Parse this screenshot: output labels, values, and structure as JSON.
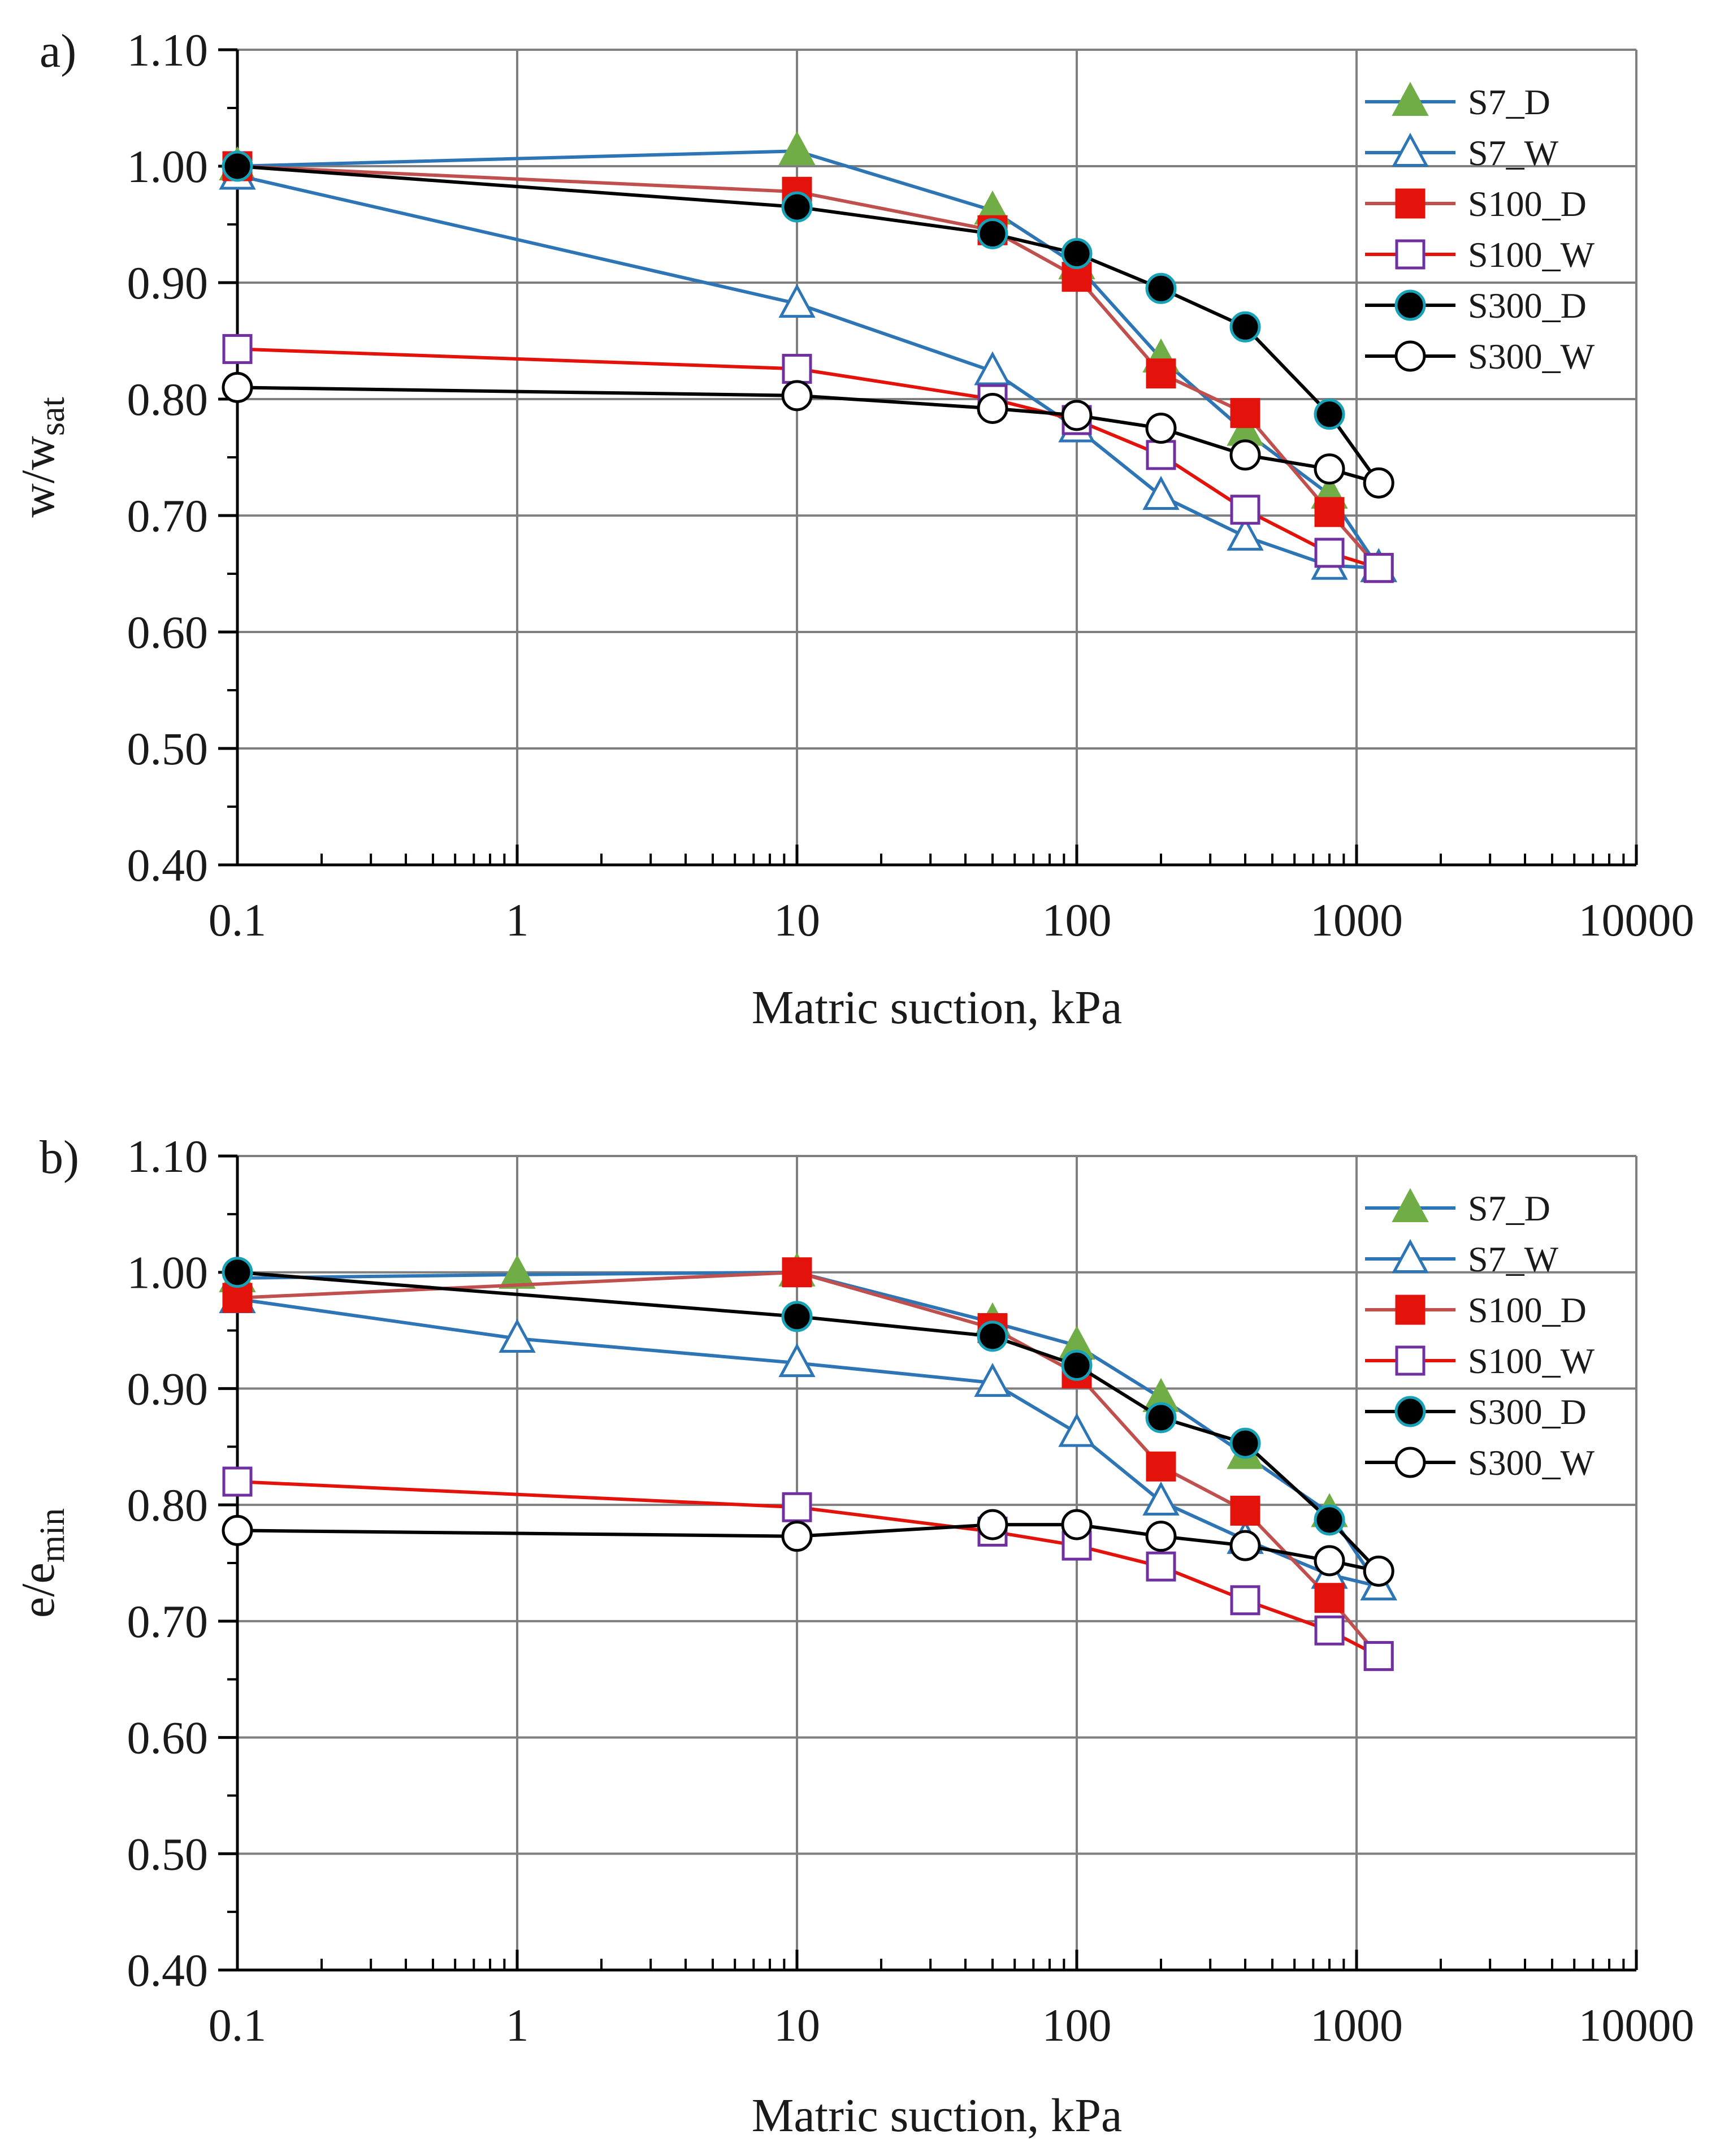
{
  "chart_data": [
    {
      "type": "line",
      "panel_label": "a)",
      "xlabel": "Matric suction, kPa",
      "ylabel_main": "w/w",
      "ylabel_sub": "sat",
      "xscale": "log",
      "xlim": [
        0.1,
        10000
      ],
      "ylim": [
        0.4,
        1.1
      ],
      "x_ticks": [
        0.1,
        1,
        10,
        100,
        1000,
        10000
      ],
      "x_tick_labels": [
        "0.1",
        "1",
        "10",
        "100",
        "1000",
        "10000"
      ],
      "y_ticks": [
        0.4,
        0.5,
        0.6,
        0.7,
        0.8,
        0.9,
        1.0,
        1.1
      ],
      "y_tick_labels": [
        "0.40",
        "0.50",
        "0.60",
        "0.70",
        "0.80",
        "0.90",
        "1.00",
        "1.10"
      ],
      "grid": true,
      "legend_position": "top-right",
      "series": [
        {
          "name": "S7_D",
          "line_color": "#2E75B6",
          "marker": "triangle",
          "marker_fill": "#70AD47",
          "marker_edge": "#70AD47",
          "x": [
            0.1,
            10,
            50,
            100,
            200,
            400,
            800,
            1200
          ],
          "y": [
            1.0,
            1.013,
            0.962,
            0.915,
            0.835,
            0.772,
            0.718,
            0.655
          ]
        },
        {
          "name": "S7_W",
          "line_color": "#2E75B6",
          "marker": "triangle",
          "marker_fill": "#ffffff",
          "marker_edge": "#2E75B6",
          "x": [
            0.1,
            10,
            50,
            100,
            200,
            400,
            800,
            1200
          ],
          "y": [
            0.992,
            0.882,
            0.824,
            0.775,
            0.717,
            0.682,
            0.657,
            0.655
          ]
        },
        {
          "name": "S100_D",
          "line_color": "#C0504D",
          "marker": "square",
          "marker_fill": "#E3120B",
          "marker_edge": "#E3120B",
          "x": [
            0.1,
            10,
            50,
            100,
            200,
            400,
            800,
            1200
          ],
          "y": [
            1.0,
            0.978,
            0.945,
            0.905,
            0.822,
            0.788,
            0.703,
            0.655
          ]
        },
        {
          "name": "S100_W",
          "line_color": "#E3120B",
          "marker": "square",
          "marker_fill": "#ffffff",
          "marker_edge": "#7030A0",
          "x": [
            0.1,
            10,
            50,
            100,
            200,
            400,
            800,
            1200
          ],
          "y": [
            0.843,
            0.826,
            0.8,
            0.782,
            0.752,
            0.705,
            0.668,
            0.655
          ]
        },
        {
          "name": "S300_D",
          "line_color": "#000000",
          "marker": "circle",
          "marker_fill": "#000000",
          "marker_edge": "#17A2B8",
          "x": [
            0.1,
            10,
            50,
            100,
            200,
            400,
            800,
            1200
          ],
          "y": [
            1.0,
            0.965,
            0.942,
            0.925,
            0.895,
            0.862,
            0.787,
            0.728
          ]
        },
        {
          "name": "S300_W",
          "line_color": "#000000",
          "marker": "circle",
          "marker_fill": "#ffffff",
          "marker_edge": "#000000",
          "x": [
            0.1,
            10,
            50,
            100,
            200,
            400,
            800,
            1200
          ],
          "y": [
            0.81,
            0.803,
            0.792,
            0.786,
            0.775,
            0.752,
            0.74,
            0.728
          ]
        }
      ]
    },
    {
      "type": "line",
      "panel_label": "b)",
      "xlabel": "Matric suction, kPa",
      "ylabel_main": "e/e",
      "ylabel_sub": "min",
      "xscale": "log",
      "xlim": [
        0.1,
        10000
      ],
      "ylim": [
        0.4,
        1.1
      ],
      "x_ticks": [
        0.1,
        1,
        10,
        100,
        1000,
        10000
      ],
      "x_tick_labels": [
        "0.1",
        "1",
        "10",
        "100",
        "1000",
        "10000"
      ],
      "y_ticks": [
        0.4,
        0.5,
        0.6,
        0.7,
        0.8,
        0.9,
        1.0,
        1.1
      ],
      "y_tick_labels": [
        "0.40",
        "0.50",
        "0.60",
        "0.70",
        "0.80",
        "0.90",
        "1.00",
        "1.10"
      ],
      "grid": true,
      "legend_position": "top-right",
      "series": [
        {
          "name": "S7_D",
          "line_color": "#2E75B6",
          "marker": "triangle",
          "marker_fill": "#70AD47",
          "marker_edge": "#70AD47",
          "x": [
            0.1,
            1,
            10,
            50,
            100,
            200,
            400,
            800,
            1200
          ],
          "y": [
            0.995,
            0.998,
            1.0,
            0.957,
            0.937,
            0.892,
            0.843,
            0.793,
            0.73
          ]
        },
        {
          "name": "S7_W",
          "line_color": "#2E75B6",
          "marker": "triangle",
          "marker_fill": "#ffffff",
          "marker_edge": "#2E75B6",
          "x": [
            0.1,
            1,
            10,
            50,
            100,
            200,
            400,
            800,
            1200
          ],
          "y": [
            0.977,
            0.943,
            0.922,
            0.905,
            0.862,
            0.803,
            0.77,
            0.74,
            0.73
          ]
        },
        {
          "name": "S100_D",
          "line_color": "#C0504D",
          "marker": "square",
          "marker_fill": "#E3120B",
          "marker_edge": "#E3120B",
          "x": [
            0.1,
            10,
            50,
            100,
            200,
            400,
            800,
            1200
          ],
          "y": [
            0.978,
            1.0,
            0.952,
            0.913,
            0.833,
            0.795,
            0.72,
            0.67
          ]
        },
        {
          "name": "S100_W",
          "line_color": "#E3120B",
          "marker": "square",
          "marker_fill": "#ffffff",
          "marker_edge": "#7030A0",
          "x": [
            0.1,
            10,
            50,
            100,
            200,
            400,
            800,
            1200
          ],
          "y": [
            0.82,
            0.798,
            0.777,
            0.765,
            0.747,
            0.718,
            0.692,
            0.67
          ]
        },
        {
          "name": "S300_D",
          "line_color": "#000000",
          "marker": "circle",
          "marker_fill": "#000000",
          "marker_edge": "#17A2B8",
          "x": [
            0.1,
            10,
            50,
            100,
            200,
            400,
            800,
            1200
          ],
          "y": [
            1.0,
            0.962,
            0.945,
            0.92,
            0.875,
            0.853,
            0.787,
            0.743
          ]
        },
        {
          "name": "S300_W",
          "line_color": "#000000",
          "marker": "circle",
          "marker_fill": "#ffffff",
          "marker_edge": "#000000",
          "x": [
            0.1,
            10,
            50,
            100,
            200,
            400,
            800,
            1200
          ],
          "y": [
            0.778,
            0.773,
            0.783,
            0.783,
            0.773,
            0.765,
            0.752,
            0.743
          ]
        }
      ]
    }
  ]
}
